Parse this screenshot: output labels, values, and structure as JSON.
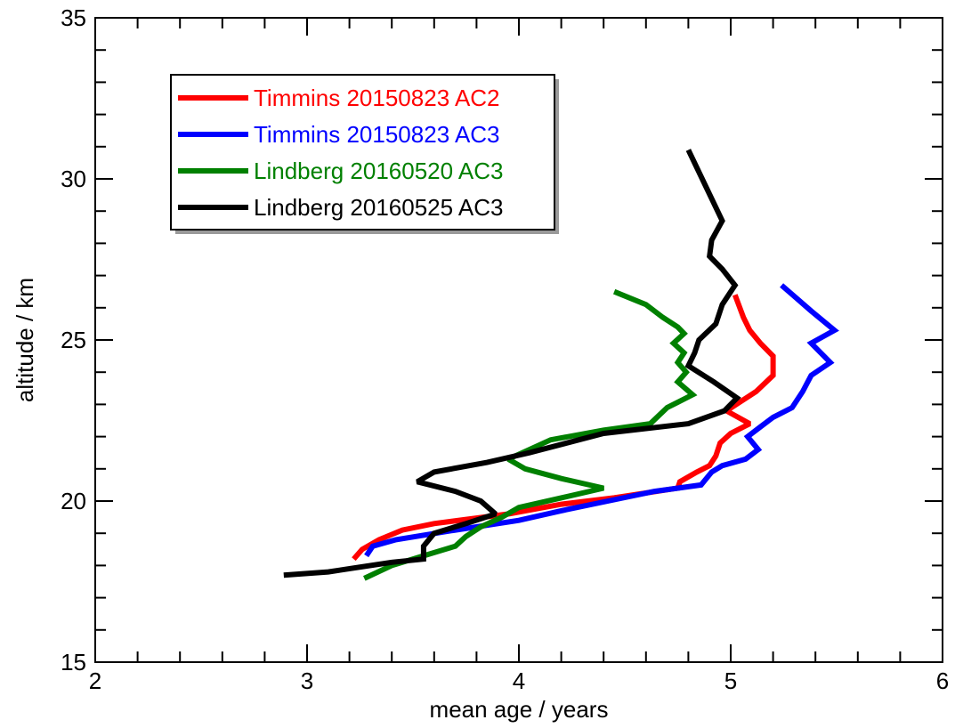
{
  "chart_data": {
    "type": "line",
    "title": "",
    "xlabel": "mean age / years",
    "ylabel": "altitude / km",
    "xlim": [
      2,
      6
    ],
    "ylim": [
      15,
      35
    ],
    "x_ticks": [
      "2",
      "3",
      "4",
      "5",
      "6"
    ],
    "y_ticks": [
      "15",
      "20",
      "25",
      "30",
      "35"
    ],
    "grid": false,
    "legend_position": "top-left",
    "series": [
      {
        "name": "Timmins 20150823 AC2",
        "color": "#ff0000",
        "points": [
          [
            5.02,
            26.4
          ],
          [
            5.06,
            25.7
          ],
          [
            5.09,
            25.3
          ],
          [
            5.14,
            24.9
          ],
          [
            5.2,
            24.5
          ],
          [
            5.2,
            23.9
          ],
          [
            5.12,
            23.4
          ],
          [
            5.05,
            23.1
          ],
          [
            4.98,
            22.8
          ],
          [
            5.09,
            22.4
          ],
          [
            5.0,
            22.1
          ],
          [
            4.95,
            21.8
          ],
          [
            4.93,
            21.4
          ],
          [
            4.9,
            21.1
          ],
          [
            4.84,
            20.9
          ],
          [
            4.76,
            20.6
          ],
          [
            4.75,
            20.4
          ],
          [
            4.45,
            20.1
          ],
          [
            4.2,
            19.9
          ],
          [
            3.95,
            19.6
          ],
          [
            3.6,
            19.3
          ],
          [
            3.45,
            19.1
          ],
          [
            3.34,
            18.8
          ],
          [
            3.26,
            18.5
          ],
          [
            3.22,
            18.2
          ]
        ]
      },
      {
        "name": "Timmins 20150823 AC3",
        "color": "#0000ff",
        "points": [
          [
            5.24,
            26.7
          ],
          [
            5.38,
            25.9
          ],
          [
            5.49,
            25.3
          ],
          [
            5.38,
            24.9
          ],
          [
            5.47,
            24.3
          ],
          [
            5.38,
            23.9
          ],
          [
            5.34,
            23.4
          ],
          [
            5.29,
            22.9
          ],
          [
            5.2,
            22.6
          ],
          [
            5.14,
            22.3
          ],
          [
            5.08,
            22.0
          ],
          [
            5.13,
            21.6
          ],
          [
            5.07,
            21.3
          ],
          [
            4.96,
            21.1
          ],
          [
            4.91,
            20.9
          ],
          [
            4.86,
            20.5
          ],
          [
            4.64,
            20.3
          ],
          [
            4.42,
            20.0
          ],
          [
            4.2,
            19.7
          ],
          [
            4.0,
            19.4
          ],
          [
            3.7,
            19.1
          ],
          [
            3.42,
            18.8
          ],
          [
            3.31,
            18.6
          ],
          [
            3.28,
            18.3
          ]
        ]
      },
      {
        "name": "Lindberg 20160520 AC3",
        "color": "#008000",
        "points": [
          [
            4.45,
            26.5
          ],
          [
            4.6,
            26.1
          ],
          [
            4.68,
            25.7
          ],
          [
            4.75,
            25.4
          ],
          [
            4.78,
            25.2
          ],
          [
            4.73,
            24.9
          ],
          [
            4.78,
            24.6
          ],
          [
            4.75,
            24.3
          ],
          [
            4.79,
            24.0
          ],
          [
            4.75,
            23.7
          ],
          [
            4.82,
            23.3
          ],
          [
            4.7,
            22.9
          ],
          [
            4.62,
            22.4
          ],
          [
            4.4,
            22.2
          ],
          [
            4.15,
            21.9
          ],
          [
            4.05,
            21.6
          ],
          [
            3.95,
            21.3
          ],
          [
            4.03,
            21.0
          ],
          [
            4.2,
            20.7
          ],
          [
            4.4,
            20.4
          ],
          [
            4.2,
            20.1
          ],
          [
            4.0,
            19.8
          ],
          [
            3.92,
            19.5
          ],
          [
            3.82,
            19.2
          ],
          [
            3.75,
            18.9
          ],
          [
            3.7,
            18.6
          ],
          [
            3.55,
            18.3
          ],
          [
            3.4,
            18.0
          ],
          [
            3.27,
            17.6
          ]
        ]
      },
      {
        "name": "Lindberg 20160525 AC3",
        "color": "#000000",
        "points": [
          [
            4.8,
            30.9
          ],
          [
            4.88,
            29.8
          ],
          [
            4.96,
            28.7
          ],
          [
            4.91,
            28.1
          ],
          [
            4.9,
            27.6
          ],
          [
            4.96,
            27.2
          ],
          [
            5.02,
            26.7
          ],
          [
            4.96,
            26.1
          ],
          [
            4.93,
            25.5
          ],
          [
            4.85,
            25.0
          ],
          [
            4.83,
            24.6
          ],
          [
            4.8,
            24.2
          ],
          [
            4.92,
            23.7
          ],
          [
            5.03,
            23.2
          ],
          [
            4.97,
            22.8
          ],
          [
            4.8,
            22.4
          ],
          [
            4.4,
            22.1
          ],
          [
            4.05,
            21.5
          ],
          [
            3.85,
            21.2
          ],
          [
            3.6,
            20.9
          ],
          [
            3.52,
            20.6
          ],
          [
            3.7,
            20.3
          ],
          [
            3.82,
            20.0
          ],
          [
            3.89,
            19.6
          ],
          [
            3.75,
            19.3
          ],
          [
            3.6,
            19.0
          ],
          [
            3.55,
            18.6
          ],
          [
            3.55,
            18.2
          ],
          [
            3.4,
            18.1
          ],
          [
            3.1,
            17.8
          ],
          [
            2.89,
            17.7
          ]
        ]
      }
    ]
  }
}
